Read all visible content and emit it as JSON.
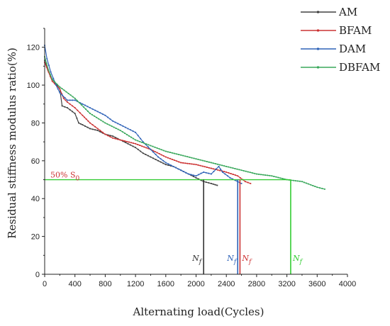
{
  "chart_data": {
    "type": "line",
    "xlabel": "Alternating load(Cycles)",
    "ylabel": "Residual stiffness modulus ratio(%)",
    "xlim": [
      0,
      4000
    ],
    "ylim": [
      0,
      130
    ],
    "x_ticks": [
      "0",
      "400",
      "800",
      "1200",
      "1600",
      "2000",
      "2400",
      "2800",
      "3200",
      "3600",
      "4000"
    ],
    "y_ticks": [
      "0",
      "20",
      "40",
      "60",
      "80",
      "100",
      "120"
    ],
    "grid": false,
    "legend_position": "top-right",
    "series": [
      {
        "name": "AM",
        "color": "#404040",
        "points": [
          [
            0,
            113
          ],
          [
            40,
            108
          ],
          [
            100,
            103
          ],
          [
            200,
            98
          ],
          [
            230,
            89
          ],
          [
            300,
            88
          ],
          [
            400,
            85
          ],
          [
            450,
            80
          ],
          [
            500,
            79
          ],
          [
            600,
            77
          ],
          [
            700,
            76
          ],
          [
            800,
            74
          ],
          [
            900,
            73
          ],
          [
            1000,
            71
          ],
          [
            1100,
            69
          ],
          [
            1200,
            67
          ],
          [
            1300,
            64
          ],
          [
            1400,
            62
          ],
          [
            1500,
            60
          ],
          [
            1600,
            58
          ],
          [
            1700,
            57
          ],
          [
            1800,
            55
          ],
          [
            1900,
            53
          ],
          [
            2000,
            51
          ],
          [
            2100,
            49
          ],
          [
            2200,
            48
          ],
          [
            2280,
            47
          ]
        ]
      },
      {
        "name": "BFAM",
        "color": "#cc3333",
        "points": [
          [
            0,
            112
          ],
          [
            50,
            107
          ],
          [
            100,
            102
          ],
          [
            200,
            98
          ],
          [
            250,
            93
          ],
          [
            300,
            91
          ],
          [
            400,
            88
          ],
          [
            500,
            84
          ],
          [
            550,
            82
          ],
          [
            600,
            80
          ],
          [
            700,
            77
          ],
          [
            800,
            74
          ],
          [
            900,
            72
          ],
          [
            1000,
            71
          ],
          [
            1200,
            69
          ],
          [
            1400,
            66
          ],
          [
            1600,
            62
          ],
          [
            1800,
            59
          ],
          [
            2000,
            58
          ],
          [
            2200,
            56
          ],
          [
            2400,
            54
          ],
          [
            2550,
            52
          ],
          [
            2650,
            49
          ],
          [
            2720,
            48
          ]
        ]
      },
      {
        "name": "DAM",
        "color": "#2f63b8",
        "points": [
          [
            0,
            121
          ],
          [
            30,
            114
          ],
          [
            80,
            107
          ],
          [
            150,
            100
          ],
          [
            200,
            96
          ],
          [
            300,
            92
          ],
          [
            400,
            92
          ],
          [
            500,
            90
          ],
          [
            600,
            88
          ],
          [
            700,
            86
          ],
          [
            800,
            84
          ],
          [
            900,
            81
          ],
          [
            1000,
            79
          ],
          [
            1100,
            77
          ],
          [
            1200,
            75
          ],
          [
            1300,
            70
          ],
          [
            1400,
            66
          ],
          [
            1500,
            62
          ],
          [
            1600,
            59
          ],
          [
            1700,
            57
          ],
          [
            1800,
            55
          ],
          [
            1900,
            53
          ],
          [
            2000,
            52
          ],
          [
            2100,
            54
          ],
          [
            2200,
            53
          ],
          [
            2300,
            57
          ],
          [
            2350,
            54
          ],
          [
            2450,
            51
          ],
          [
            2550,
            49
          ],
          [
            2600,
            48
          ]
        ]
      },
      {
        "name": "DBFAM",
        "color": "#3aa85c",
        "points": [
          [
            0,
            115
          ],
          [
            50,
            108
          ],
          [
            100,
            103
          ],
          [
            200,
            99
          ],
          [
            400,
            93
          ],
          [
            600,
            85
          ],
          [
            800,
            80
          ],
          [
            1000,
            76
          ],
          [
            1200,
            71
          ],
          [
            1400,
            68
          ],
          [
            1600,
            65
          ],
          [
            1800,
            63
          ],
          [
            2000,
            61
          ],
          [
            2200,
            59
          ],
          [
            2400,
            57
          ],
          [
            2600,
            55
          ],
          [
            2800,
            53
          ],
          [
            3000,
            52
          ],
          [
            3200,
            50
          ],
          [
            3400,
            49
          ],
          [
            3600,
            46
          ],
          [
            3700,
            45
          ]
        ]
      }
    ],
    "annotations": {
      "threshold_label": "50% S",
      "threshold_subscript": "0",
      "threshold_value": 50,
      "nf_symbol": "N",
      "nf_subscript": "f",
      "failure_lines": [
        {
          "x": 2100,
          "color": "#333333"
        },
        {
          "x": 2550,
          "color": "#2f63b8"
        },
        {
          "x": 2580,
          "color": "#cc3333"
        },
        {
          "x": 3250,
          "color": "#33cc33"
        }
      ],
      "threshold_color": "#33cc33",
      "threshold_label_color": "#cc3333"
    }
  }
}
